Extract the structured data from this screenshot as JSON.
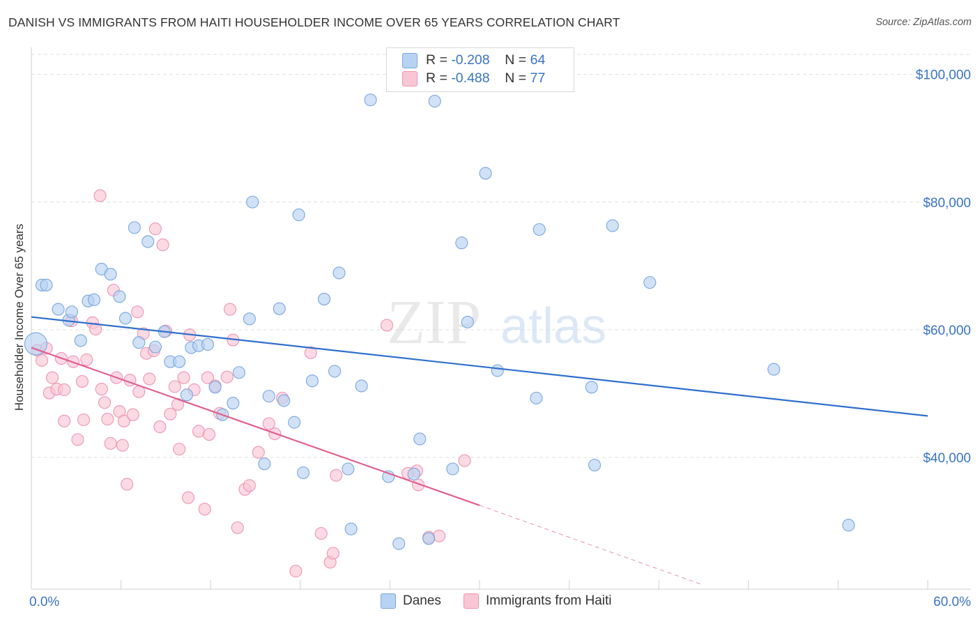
{
  "header": {
    "title": "DANISH VS IMMIGRANTS FROM HAITI HOUSEHOLDER INCOME OVER 65 YEARS CORRELATION CHART",
    "source": "Source: ZipAtlas.com"
  },
  "legend": {
    "rows": [
      {
        "r_label": "R =",
        "r_value": "-0.208",
        "n_label": "N =",
        "n_value": "64"
      },
      {
        "r_label": "R =",
        "r_value": "-0.488",
        "n_label": "N =",
        "n_value": "77"
      }
    ]
  },
  "bottom_legend": [
    "Danes",
    "Immigrants from Haiti"
  ],
  "watermark": {
    "zip": "ZIP",
    "atlas": "atlas"
  },
  "colors": {
    "danes_fill": "#b8d3f2",
    "danes_stroke": "#7aa6de",
    "danes_line": "#2f6fcf",
    "haiti_fill": "#f9c6d5",
    "haiti_stroke": "#ee94b1",
    "haiti_line": "#e0608e",
    "tick_label": "#3a74c4",
    "grid": "#dedede"
  },
  "chart_data": {
    "type": "scatter",
    "title": "DANISH VS IMMIGRANTS FROM HAITI HOUSEHOLDER INCOME OVER 65 YEARS CORRELATION CHART",
    "xlabel": "",
    "ylabel": "Householder Income Over 65 years",
    "xlim": [
      0,
      60
    ],
    "ylim": [
      21000,
      104000
    ],
    "x_tick_labels": [
      "0.0%",
      "60.0%"
    ],
    "y_ticks": [
      40000,
      60000,
      80000,
      100000
    ],
    "y_tick_labels": [
      "$40,000",
      "$60,000",
      "$80,000",
      "$100,000"
    ],
    "grid": true,
    "legend_position": "top-center",
    "series": [
      {
        "name": "Danes",
        "R": -0.208,
        "N": 64,
        "trend": {
          "x": [
            0,
            60
          ],
          "y": [
            62000,
            46500
          ]
        },
        "points": [
          [
            0.3,
            57800
          ],
          [
            0.7,
            67000
          ],
          [
            1.0,
            67000
          ],
          [
            1.8,
            63200
          ],
          [
            2.5,
            61500
          ],
          [
            2.7,
            62800
          ],
          [
            3.3,
            58300
          ],
          [
            3.8,
            64500
          ],
          [
            4.2,
            64700
          ],
          [
            4.7,
            69500
          ],
          [
            5.3,
            68700
          ],
          [
            5.9,
            65200
          ],
          [
            6.3,
            61800
          ],
          [
            6.9,
            76000
          ],
          [
            7.2,
            58000
          ],
          [
            7.8,
            73800
          ],
          [
            8.3,
            57300
          ],
          [
            8.9,
            59700
          ],
          [
            9.3,
            55000
          ],
          [
            9.9,
            55000
          ],
          [
            10.4,
            49800
          ],
          [
            10.7,
            57200
          ],
          [
            11.2,
            57500
          ],
          [
            11.8,
            57700
          ],
          [
            12.3,
            51000
          ],
          [
            12.8,
            46700
          ],
          [
            13.5,
            48500
          ],
          [
            13.9,
            53300
          ],
          [
            14.6,
            61700
          ],
          [
            14.8,
            80000
          ],
          [
            15.6,
            39000
          ],
          [
            15.9,
            49600
          ],
          [
            16.6,
            63300
          ],
          [
            16.9,
            48900
          ],
          [
            17.6,
            45500
          ],
          [
            17.9,
            78000
          ],
          [
            18.2,
            37600
          ],
          [
            18.8,
            52000
          ],
          [
            19.6,
            64800
          ],
          [
            20.3,
            53500
          ],
          [
            20.6,
            68900
          ],
          [
            21.4,
            28800
          ],
          [
            21.2,
            38200
          ],
          [
            22.1,
            51200
          ],
          [
            22.7,
            96000
          ],
          [
            23.9,
            37000
          ],
          [
            24.6,
            26500
          ],
          [
            25.6,
            37400
          ],
          [
            26.0,
            42900
          ],
          [
            26.6,
            27300
          ],
          [
            27.0,
            95800
          ],
          [
            28.2,
            38200
          ],
          [
            28.8,
            73600
          ],
          [
            29.2,
            61200
          ],
          [
            30.4,
            84500
          ],
          [
            31.2,
            53600
          ],
          [
            33.8,
            49300
          ],
          [
            34.0,
            75700
          ],
          [
            37.5,
            51000
          ],
          [
            37.7,
            38800
          ],
          [
            38.9,
            76300
          ],
          [
            41.4,
            67400
          ],
          [
            49.7,
            53800
          ],
          [
            54.7,
            29400
          ]
        ]
      },
      {
        "name": "Immigrants from Haiti",
        "R": -0.488,
        "N": 77,
        "trend": {
          "x": [
            0,
            30
          ],
          "y": [
            57200,
            32500
          ]
        },
        "trend_extension": {
          "x": [
            30,
            45
          ],
          "y": [
            32500,
            20000
          ]
        },
        "points": [
          [
            0.4,
            56800
          ],
          [
            0.7,
            55200
          ],
          [
            1.0,
            57100
          ],
          [
            1.2,
            50100
          ],
          [
            1.4,
            52500
          ],
          [
            1.7,
            50700
          ],
          [
            2.0,
            55500
          ],
          [
            2.2,
            50600
          ],
          [
            2.2,
            45700
          ],
          [
            2.7,
            61400
          ],
          [
            2.8,
            55000
          ],
          [
            3.1,
            42800
          ],
          [
            3.4,
            51900
          ],
          [
            3.5,
            45900
          ],
          [
            3.7,
            55300
          ],
          [
            4.1,
            61100
          ],
          [
            4.3,
            60100
          ],
          [
            4.6,
            81000
          ],
          [
            4.7,
            50700
          ],
          [
            4.9,
            48600
          ],
          [
            5.1,
            46000
          ],
          [
            5.3,
            42200
          ],
          [
            5.5,
            66200
          ],
          [
            5.7,
            52500
          ],
          [
            5.9,
            47200
          ],
          [
            6.1,
            41900
          ],
          [
            6.2,
            45700
          ],
          [
            6.4,
            35800
          ],
          [
            6.6,
            52100
          ],
          [
            6.8,
            46700
          ],
          [
            7.1,
            62800
          ],
          [
            7.2,
            50300
          ],
          [
            7.5,
            59400
          ],
          [
            7.7,
            56300
          ],
          [
            7.9,
            52300
          ],
          [
            8.2,
            56700
          ],
          [
            8.3,
            75800
          ],
          [
            8.6,
            44800
          ],
          [
            8.8,
            73300
          ],
          [
            9.0,
            59800
          ],
          [
            9.3,
            46800
          ],
          [
            9.6,
            51100
          ],
          [
            9.8,
            48300
          ],
          [
            9.9,
            41300
          ],
          [
            10.2,
            52500
          ],
          [
            10.5,
            33700
          ],
          [
            10.6,
            59200
          ],
          [
            10.9,
            50600
          ],
          [
            11.2,
            44100
          ],
          [
            11.6,
            31900
          ],
          [
            11.8,
            52500
          ],
          [
            11.9,
            43600
          ],
          [
            12.3,
            51200
          ],
          [
            12.6,
            46900
          ],
          [
            13.1,
            52600
          ],
          [
            13.3,
            63200
          ],
          [
            13.5,
            58400
          ],
          [
            13.8,
            29000
          ],
          [
            14.3,
            35000
          ],
          [
            14.6,
            35600
          ],
          [
            15.2,
            40800
          ],
          [
            15.9,
            45300
          ],
          [
            16.3,
            43700
          ],
          [
            16.8,
            49300
          ],
          [
            17.7,
            22200
          ],
          [
            18.7,
            56400
          ],
          [
            19.4,
            28100
          ],
          [
            20.0,
            23600
          ],
          [
            20.2,
            25000
          ],
          [
            20.4,
            37200
          ],
          [
            23.8,
            60700
          ],
          [
            25.8,
            37900
          ],
          [
            25.9,
            35700
          ],
          [
            26.6,
            27500
          ],
          [
            27.3,
            27700
          ],
          [
            29.0,
            39500
          ],
          [
            25.2,
            37500
          ]
        ]
      }
    ]
  }
}
